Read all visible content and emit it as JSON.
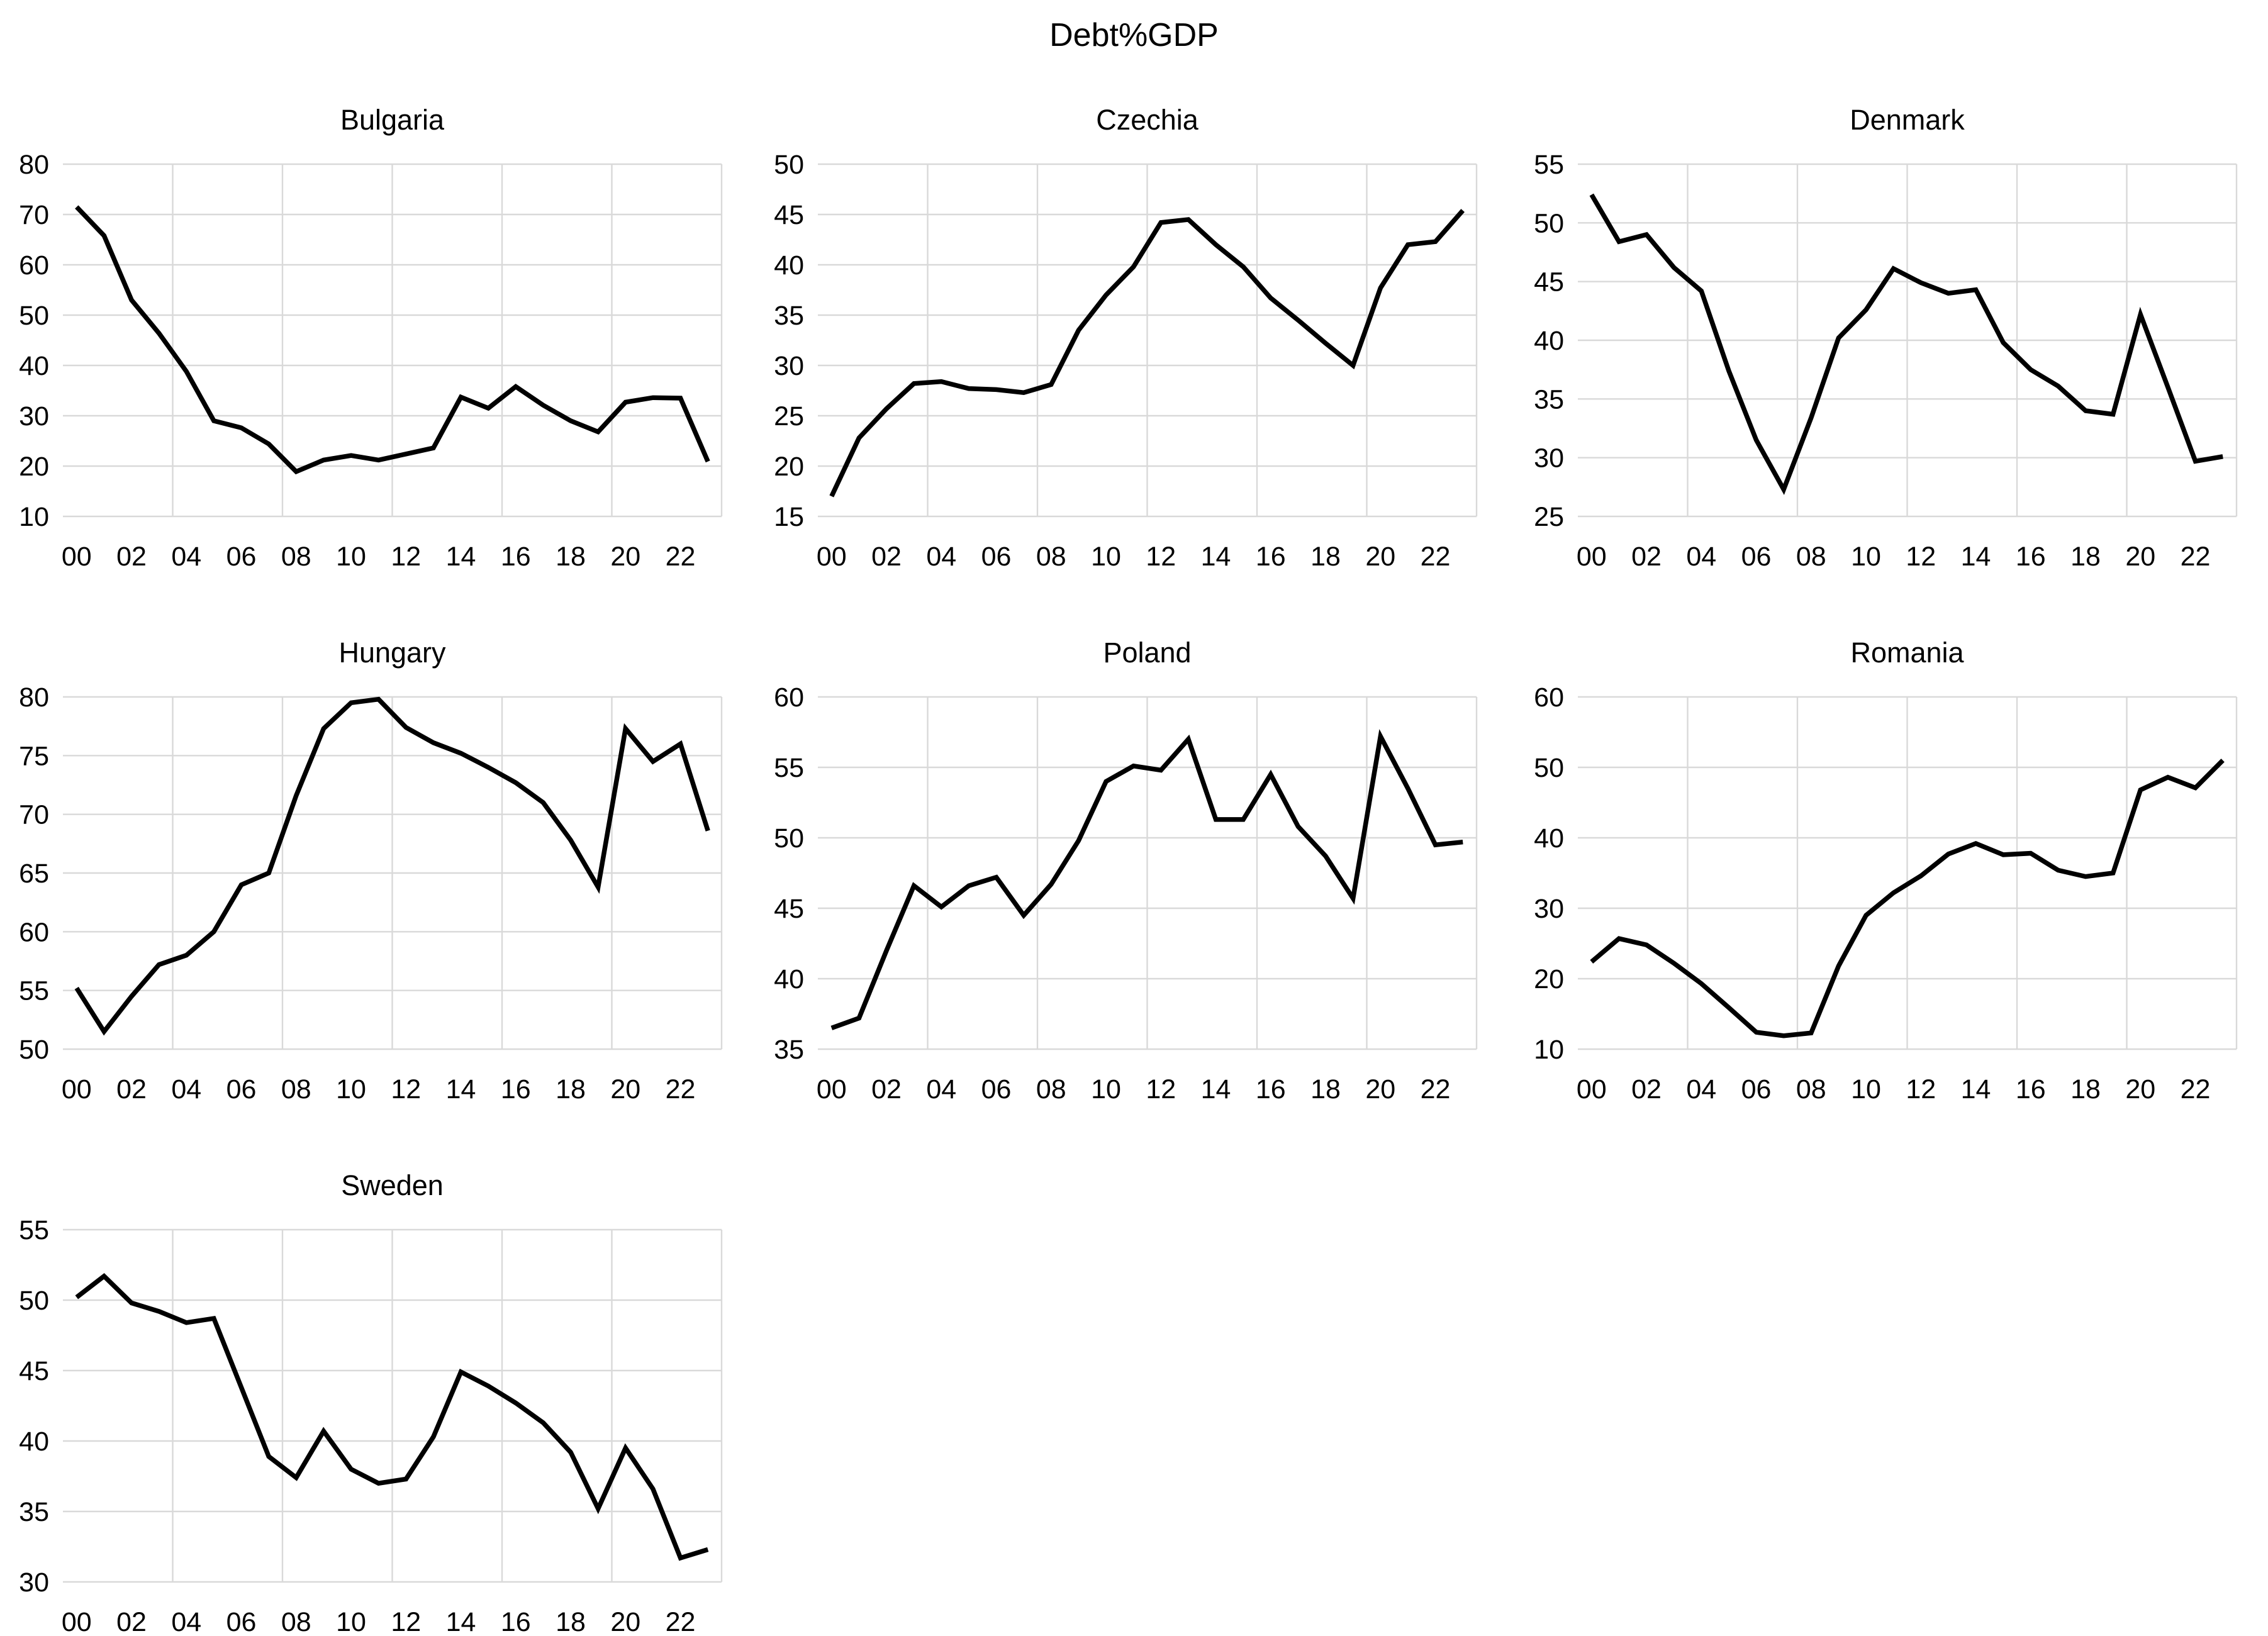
{
  "title": "Debt%GDP",
  "colors": {
    "line": "#000000",
    "grid": "#d9d9d9",
    "text": "#000000",
    "background": "#ffffff"
  },
  "x_tick_labels": [
    "00",
    "02",
    "04",
    "06",
    "08",
    "10",
    "12",
    "14",
    "16",
    "18",
    "20",
    "22"
  ],
  "chart_data": [
    {
      "type": "line",
      "title": "Bulgaria",
      "x_years": [
        "00",
        "01",
        "02",
        "03",
        "04",
        "05",
        "06",
        "07",
        "08",
        "09",
        "10",
        "11",
        "12",
        "13",
        "14",
        "15",
        "16",
        "17",
        "18",
        "19",
        "20",
        "21",
        "22",
        "23"
      ],
      "x_tick_labels": [
        "00",
        "02",
        "04",
        "06",
        "08",
        "10",
        "12",
        "14",
        "16",
        "18",
        "20",
        "22"
      ],
      "values": [
        71.5,
        65.8,
        53.0,
        46.4,
        38.8,
        29.0,
        27.6,
        24.4,
        18.9,
        21.2,
        22.1,
        21.2,
        22.4,
        23.6,
        33.7,
        31.5,
        35.8,
        32.1,
        29.0,
        26.8,
        32.7,
        33.6,
        33.5,
        20.9
      ],
      "ylim": [
        10,
        80
      ],
      "yticks": [
        10,
        20,
        30,
        40,
        50,
        60,
        70,
        80
      ],
      "grid": true,
      "legend": null
    },
    {
      "type": "line",
      "title": "Czechia",
      "x_years": [
        "00",
        "01",
        "02",
        "03",
        "04",
        "05",
        "06",
        "07",
        "08",
        "09",
        "10",
        "11",
        "12",
        "13",
        "14",
        "15",
        "16",
        "17",
        "18",
        "19",
        "20",
        "21",
        "22",
        "23"
      ],
      "x_tick_labels": [
        "00",
        "02",
        "04",
        "06",
        "08",
        "10",
        "12",
        "14",
        "16",
        "18",
        "20",
        "22"
      ],
      "values": [
        17.0,
        22.8,
        25.7,
        28.2,
        28.4,
        27.7,
        27.6,
        27.3,
        28.1,
        33.5,
        37.0,
        39.8,
        44.2,
        44.5,
        42.0,
        39.8,
        36.7,
        34.5,
        32.2,
        30.0,
        37.7,
        42.0,
        42.3,
        45.4
      ],
      "ylim": [
        15,
        50
      ],
      "yticks": [
        15,
        20,
        25,
        30,
        35,
        40,
        45,
        50
      ],
      "grid": true,
      "legend": null
    },
    {
      "type": "line",
      "title": "Denmark",
      "x_years": [
        "00",
        "01",
        "02",
        "03",
        "04",
        "05",
        "06",
        "07",
        "08",
        "09",
        "10",
        "11",
        "12",
        "13",
        "14",
        "15",
        "16",
        "17",
        "18",
        "19",
        "20",
        "21",
        "22",
        "23"
      ],
      "x_tick_labels": [
        "00",
        "02",
        "04",
        "06",
        "08",
        "10",
        "12",
        "14",
        "16",
        "18",
        "20",
        "22"
      ],
      "values": [
        52.4,
        48.4,
        49.0,
        46.2,
        44.2,
        37.4,
        31.5,
        27.3,
        33.4,
        40.2,
        42.6,
        46.1,
        44.9,
        44.0,
        44.3,
        39.8,
        37.5,
        36.1,
        34.0,
        33.7,
        42.2,
        36.0,
        29.7,
        30.1
      ],
      "ylim": [
        25,
        55
      ],
      "yticks": [
        25,
        30,
        35,
        40,
        45,
        50,
        55
      ],
      "grid": true,
      "legend": null
    },
    {
      "type": "line",
      "title": "Hungary",
      "x_years": [
        "00",
        "01",
        "02",
        "03",
        "04",
        "05",
        "06",
        "07",
        "08",
        "09",
        "10",
        "11",
        "12",
        "13",
        "14",
        "15",
        "16",
        "17",
        "18",
        "19",
        "20",
        "21",
        "22",
        "23"
      ],
      "x_tick_labels": [
        "00",
        "02",
        "04",
        "06",
        "08",
        "10",
        "12",
        "14",
        "16",
        "18",
        "20",
        "22"
      ],
      "values": [
        55.2,
        51.5,
        54.5,
        57.2,
        58.0,
        60.0,
        64.0,
        65.0,
        71.6,
        77.3,
        79.5,
        79.8,
        77.4,
        76.1,
        75.2,
        74.0,
        72.7,
        71.0,
        67.8,
        63.8,
        77.3,
        74.5,
        76.0,
        68.6
      ],
      "ylim": [
        50,
        80
      ],
      "yticks": [
        50,
        55,
        60,
        65,
        70,
        75,
        80
      ],
      "grid": true,
      "legend": null
    },
    {
      "type": "line",
      "title": "Poland",
      "x_years": [
        "00",
        "01",
        "02",
        "03",
        "04",
        "05",
        "06",
        "07",
        "08",
        "09",
        "10",
        "11",
        "12",
        "13",
        "14",
        "15",
        "16",
        "17",
        "18",
        "19",
        "20",
        "21",
        "22",
        "23"
      ],
      "x_tick_labels": [
        "00",
        "02",
        "04",
        "06",
        "08",
        "10",
        "12",
        "14",
        "16",
        "18",
        "20",
        "22"
      ],
      "values": [
        36.5,
        37.2,
        42.0,
        46.6,
        45.1,
        46.6,
        47.2,
        44.5,
        46.7,
        49.8,
        54.0,
        55.1,
        54.8,
        57.0,
        51.3,
        51.3,
        54.5,
        50.8,
        48.7,
        45.7,
        57.2,
        53.5,
        49.5,
        49.7
      ],
      "ylim": [
        35,
        60
      ],
      "yticks": [
        35,
        40,
        45,
        50,
        55,
        60
      ],
      "grid": true,
      "legend": null
    },
    {
      "type": "line",
      "title": "Romania",
      "x_years": [
        "00",
        "01",
        "02",
        "03",
        "04",
        "05",
        "06",
        "07",
        "08",
        "09",
        "10",
        "11",
        "12",
        "13",
        "14",
        "15",
        "16",
        "17",
        "18",
        "19",
        "20",
        "21",
        "22",
        "23"
      ],
      "x_tick_labels": [
        "00",
        "02",
        "04",
        "06",
        "08",
        "10",
        "12",
        "14",
        "16",
        "18",
        "20",
        "22"
      ],
      "values": [
        22.4,
        25.7,
        24.8,
        22.2,
        19.3,
        15.9,
        12.4,
        11.9,
        12.3,
        21.8,
        29.0,
        32.2,
        34.6,
        37.7,
        39.2,
        37.6,
        37.8,
        35.4,
        34.5,
        35.0,
        46.8,
        48.6,
        47.1,
        51.0
      ],
      "ylim": [
        10,
        60
      ],
      "yticks": [
        10,
        20,
        30,
        40,
        50,
        60
      ],
      "grid": true,
      "legend": null
    },
    {
      "type": "line",
      "title": "Sweden",
      "x_years": [
        "00",
        "01",
        "02",
        "03",
        "04",
        "05",
        "06",
        "07",
        "08",
        "09",
        "10",
        "11",
        "12",
        "13",
        "14",
        "15",
        "16",
        "17",
        "18",
        "19",
        "20",
        "21",
        "22",
        "23"
      ],
      "x_tick_labels": [
        "00",
        "02",
        "04",
        "06",
        "08",
        "10",
        "12",
        "14",
        "16",
        "18",
        "20",
        "22"
      ],
      "values": [
        50.2,
        51.7,
        49.8,
        49.2,
        48.4,
        48.7,
        43.8,
        38.9,
        37.4,
        40.7,
        38.0,
        37.0,
        37.3,
        40.3,
        44.9,
        43.9,
        42.7,
        41.3,
        39.2,
        35.2,
        39.5,
        36.6,
        31.7,
        32.3
      ],
      "ylim": [
        30,
        55
      ],
      "yticks": [
        30,
        35,
        40,
        45,
        50,
        55
      ],
      "grid": true,
      "legend": null
    }
  ],
  "layout": {
    "rows": 3,
    "cols": 3,
    "positions": [
      {
        "chart": "Bulgaria",
        "row": 0,
        "col": 0
      },
      {
        "chart": "Czechia",
        "row": 0,
        "col": 1
      },
      {
        "chart": "Denmark",
        "row": 0,
        "col": 2
      },
      {
        "chart": "Hungary",
        "row": 1,
        "col": 0
      },
      {
        "chart": "Poland",
        "row": 1,
        "col": 1
      },
      {
        "chart": "Romania",
        "row": 1,
        "col": 2
      },
      {
        "chart": "Sweden",
        "row": 2,
        "col": 0
      }
    ]
  }
}
